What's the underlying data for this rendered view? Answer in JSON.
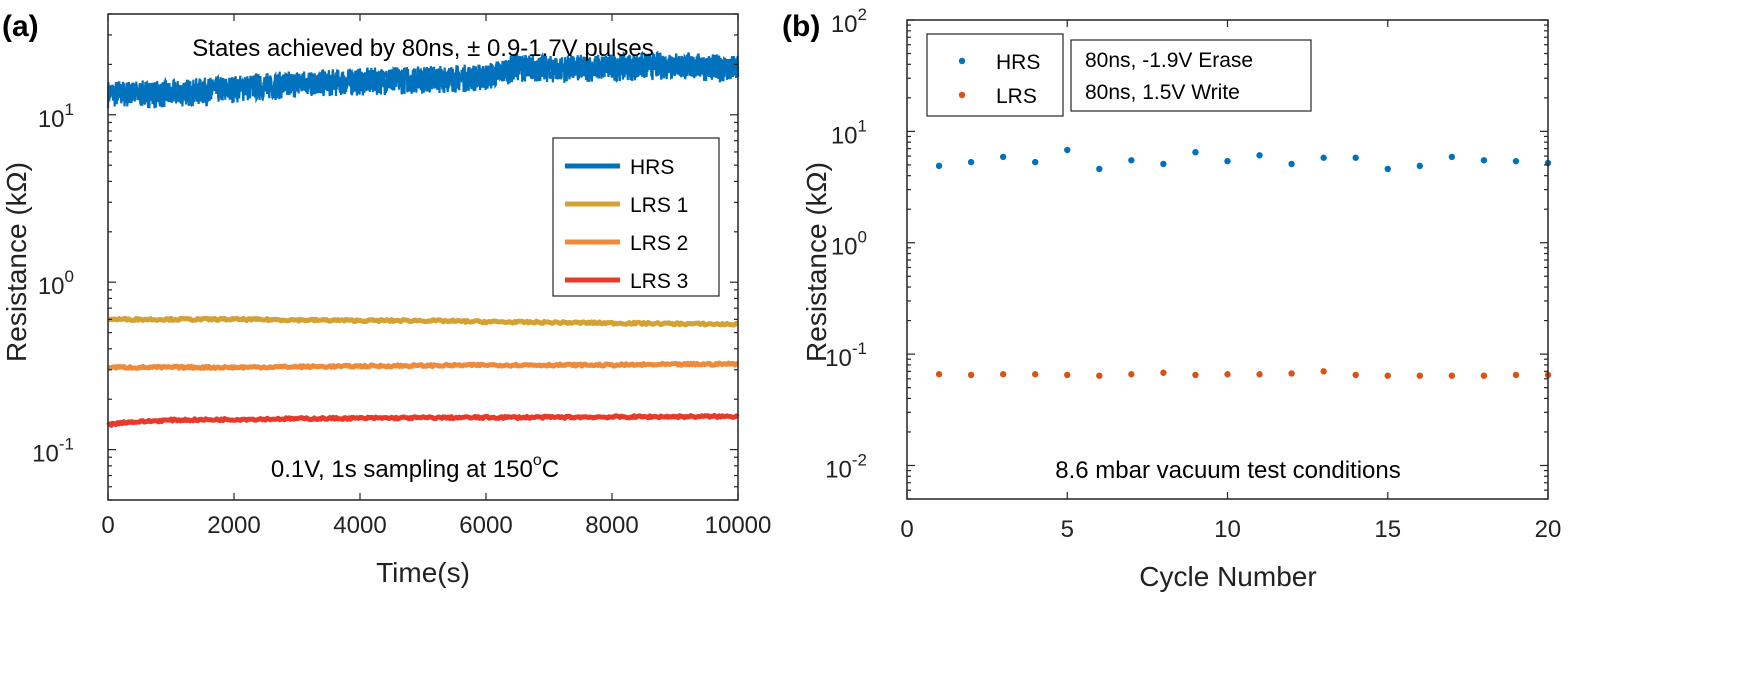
{
  "panels": {
    "a": {
      "label": "(a)",
      "annotation_top": "States achieved by 80ns, ± 0.9-1.7V pulses",
      "annotation_bottom_main": "0.1V, 1s sampling at 150",
      "annotation_bottom_sup": "o",
      "annotation_bottom_tail": "C"
    },
    "b": {
      "label": "(b)",
      "annotation_bottom": "8.6 mbar vacuum test conditions",
      "note_erase": "80ns, -1.9V Erase",
      "note_write": "80ns,  1.5V Write"
    }
  },
  "chart_data": [
    {
      "type": "line",
      "xlabel": "Time(s)",
      "ylabel": "Resistance (kΩ)",
      "xlim": [
        0,
        10000
      ],
      "ylim": [
        0.05,
        40
      ],
      "yscale": "log",
      "xticks": [
        0,
        2000,
        4000,
        6000,
        8000,
        10000
      ],
      "xtick_labels": [
        "0",
        "2000",
        "4000",
        "6000",
        "8000",
        "10000"
      ],
      "yticks": [
        {
          "base": "10",
          "exp": "-1",
          "value": 0.1
        },
        {
          "base": "10",
          "exp": "0",
          "value": 1
        },
        {
          "base": "10",
          "exp": "1",
          "value": 10
        }
      ],
      "legend_position": "right",
      "series": [
        {
          "name": "HRS",
          "color": "#0072BD",
          "noisy": true,
          "x": [
            0,
            1000,
            2000,
            3000,
            4000,
            5000,
            6000,
            6500,
            7000,
            8000,
            9000,
            10000
          ],
          "y": [
            13.5,
            13.5,
            14.5,
            15.5,
            16,
            16.5,
            17,
            19.5,
            19,
            19.5,
            20,
            19
          ]
        },
        {
          "name": "LRS 1",
          "color": "#D4A232",
          "x": [
            0,
            2000,
            4000,
            5000,
            6000,
            8000,
            10000
          ],
          "y": [
            0.6,
            0.6,
            0.59,
            0.59,
            0.58,
            0.57,
            0.56
          ]
        },
        {
          "name": "LRS 2",
          "color": "#EE8B3A",
          "x": [
            0,
            2000,
            4000,
            6000,
            8000,
            10000
          ],
          "y": [
            0.31,
            0.31,
            0.315,
            0.32,
            0.32,
            0.325
          ]
        },
        {
          "name": "LRS 3",
          "color": "#E8392B",
          "x": [
            0,
            200,
            1000,
            3000,
            5000,
            7000,
            10000
          ],
          "y": [
            0.14,
            0.145,
            0.15,
            0.153,
            0.155,
            0.156,
            0.158
          ]
        }
      ]
    },
    {
      "type": "scatter",
      "xlabel": "Cycle Number",
      "ylabel": "Resistance (kΩ)",
      "xlim": [
        0,
        20
      ],
      "ylim": [
        0.005,
        100
      ],
      "yscale": "log",
      "xticks": [
        0,
        5,
        10,
        15,
        20
      ],
      "xtick_labels": [
        "0",
        "5",
        "10",
        "15",
        "20"
      ],
      "yticks": [
        {
          "base": "10",
          "exp": "-2",
          "value": 0.01
        },
        {
          "base": "10",
          "exp": "-1",
          "value": 0.1
        },
        {
          "base": "10",
          "exp": "0",
          "value": 1
        },
        {
          "base": "10",
          "exp": "1",
          "value": 10
        },
        {
          "base": "10",
          "exp": "2",
          "value": 100
        }
      ],
      "legend_position": "top-left",
      "series": [
        {
          "name": "HRS",
          "color": "#0072BD",
          "x": [
            1,
            2,
            3,
            4,
            5,
            6,
            7,
            8,
            9,
            10,
            11,
            12,
            13,
            14,
            15,
            16,
            17,
            18,
            19,
            20
          ],
          "y": [
            4.9,
            5.3,
            5.9,
            5.3,
            6.8,
            4.6,
            5.5,
            5.1,
            6.5,
            5.4,
            6.1,
            5.1,
            5.8,
            5.8,
            4.6,
            4.9,
            5.9,
            5.5,
            5.4,
            5.2
          ]
        },
        {
          "name": "LRS",
          "color": "#D95319",
          "x": [
            1,
            2,
            3,
            4,
            5,
            6,
            7,
            8,
            9,
            10,
            11,
            12,
            13,
            14,
            15,
            16,
            17,
            18,
            19,
            20
          ],
          "y": [
            0.066,
            0.065,
            0.066,
            0.066,
            0.065,
            0.064,
            0.066,
            0.068,
            0.065,
            0.066,
            0.066,
            0.067,
            0.07,
            0.065,
            0.064,
            0.064,
            0.064,
            0.064,
            0.065,
            0.065
          ]
        }
      ]
    }
  ]
}
